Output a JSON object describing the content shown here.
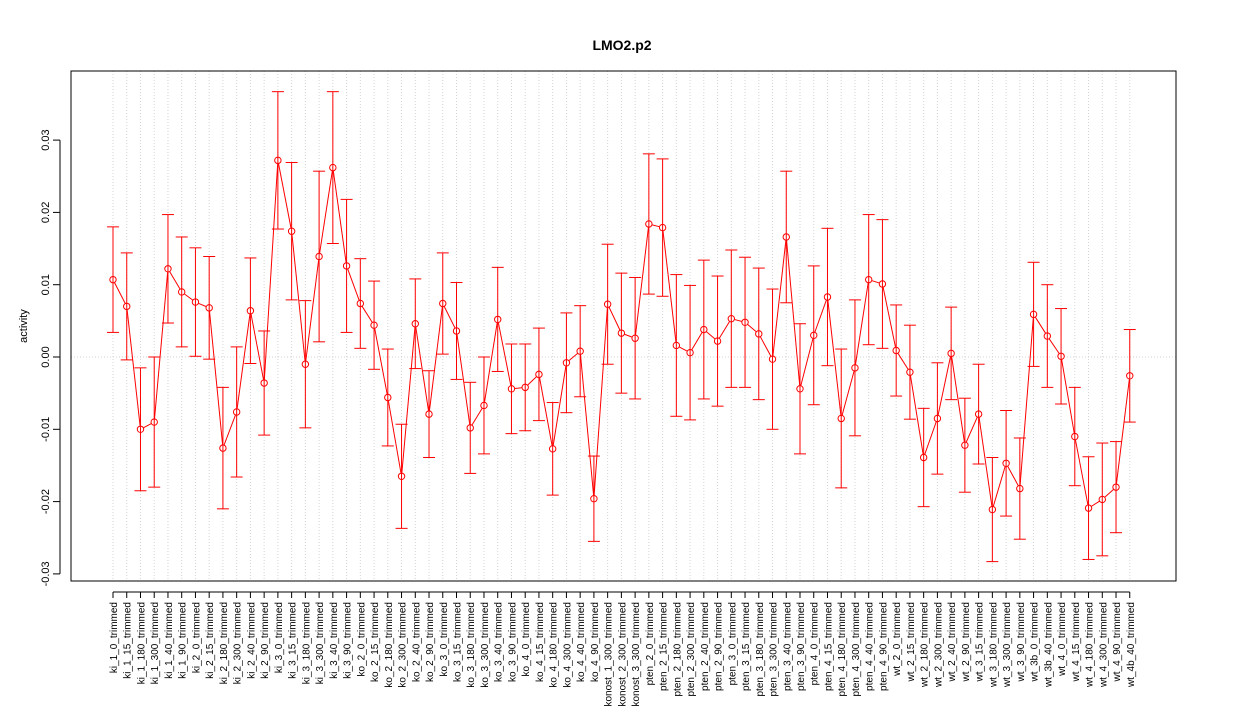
{
  "chart_data": {
    "type": "line",
    "title": "LMO2.p2",
    "xlabel": "",
    "ylabel": "activity",
    "ylim": [
      -0.031,
      0.04
    ],
    "yticks": [
      -0.03,
      -0.02,
      -0.01,
      0.0,
      0.01,
      0.02,
      0.03
    ],
    "ytick_labels": [
      "-0.03",
      "-0.02",
      "-0.01",
      "0.00",
      "0.01",
      "0.02",
      "0.03"
    ],
    "grid": true,
    "reference_line": 0.0,
    "color": "#ff0000",
    "error_bars": true,
    "categories": [
      "ki_1_0_trimmed",
      "ki_1_15_trimmed",
      "ki_1_180_trimmed",
      "ki_1_300_trimmed",
      "ki_1_40_trimmed",
      "ki_1_90_trimmed",
      "ki_2_0_trimmed",
      "ki_2_15_trimmed",
      "ki_2_180_trimmed",
      "ki_2_300_trimmed",
      "ki_2_40_trimmed",
      "ki_2_90_trimmed",
      "ki_3_0_trimmed",
      "ki_3_15_trimmed",
      "ki_3_180_trimmed",
      "ki_3_300_trimmed",
      "ki_3_40_trimmed",
      "ki_3_90_trimmed",
      "ko_2_0_trimmed",
      "ko_2_15_trimmed",
      "ko_2_180_trimmed",
      "ko_2_300_trimmed",
      "ko_2_40_trimmed",
      "ko_2_90_trimmed",
      "ko_3_0_trimmed",
      "ko_3_15_trimmed",
      "ko_3_180_trimmed",
      "ko_3_300_trimmed",
      "ko_3_40_trimmed",
      "ko_3_90_trimmed",
      "ko_4_0_trimmed",
      "ko_4_15_trimmed",
      "ko_4_180_trimmed",
      "ko_4_300_trimmed",
      "ko_4_40_trimmed",
      "ko_4_90_trimmed",
      "konost_1_300_trimmed",
      "konost_2_300_trimmed",
      "konost_3_300_trimmed",
      "pten_2_0_trimmed",
      "pten_2_15_trimmed",
      "pten_2_180_trimmed",
      "pten_2_300_trimmed",
      "pten_2_40_trimmed",
      "pten_2_90_trimmed",
      "pten_3_0_trimmed",
      "pten_3_15_trimmed",
      "pten_3_180_trimmed",
      "pten_3_300_trimmed",
      "pten_3_40_trimmed",
      "pten_3_90_trimmed",
      "pten_4_0_trimmed",
      "pten_4_15_trimmed",
      "pten_4_180_trimmed",
      "pten_4_300_trimmed",
      "pten_4_40_trimmed",
      "pten_4_90_trimmed",
      "wt_2_0_trimmed",
      "wt_2_15_trimmed",
      "wt_2_180_trimmed",
      "wt_2_300_trimmed",
      "wt_2_40_trimmed",
      "wt_2_90_trimmed",
      "wt_3_15_trimmed",
      "wt_3_180_trimmed",
      "wt_3_300_trimmed",
      "wt_3_90_trimmed",
      "wt_3b_0_trimmed",
      "wt_3b_40_trimmed",
      "wt_4_0_trimmed",
      "wt_4_15_trimmed",
      "wt_4_180_trimmed",
      "wt_4_300_trimmed",
      "wt_4_90_trimmed",
      "wt_4b_40_trimmed"
    ],
    "values": [
      0.0107,
      0.007,
      -0.01,
      -0.009,
      0.0122,
      0.009,
      0.0076,
      0.0068,
      -0.0126,
      -0.0076,
      0.0064,
      -0.0036,
      0.0272,
      0.0174,
      -0.001,
      0.0139,
      0.0262,
      0.0126,
      0.0074,
      0.0044,
      -0.0056,
      -0.0165,
      0.0046,
      -0.0079,
      0.0074,
      0.0036,
      -0.0098,
      -0.0067,
      0.0052,
      -0.0044,
      -0.0042,
      -0.0024,
      -0.0127,
      -0.0008,
      0.0008,
      -0.0196,
      0.0073,
      0.0033,
      0.0026,
      0.0184,
      0.0179,
      0.0016,
      0.0006,
      0.0038,
      0.0022,
      0.0053,
      0.0048,
      0.0032,
      -0.0003,
      0.0166,
      -0.0044,
      0.003,
      0.0083,
      -0.0085,
      -0.0015,
      0.0107,
      0.0101,
      0.0009,
      -0.0021,
      -0.0139,
      -0.0085,
      0.0005,
      -0.0122,
      -0.0079,
      -0.0211,
      -0.0147,
      -0.0182,
      0.0059,
      0.0029,
      0.0001,
      -0.011,
      -0.0209,
      -0.0197,
      -0.018,
      -0.0026
    ],
    "errors": [
      0.0073,
      0.0074,
      0.0085,
      0.009,
      0.0075,
      0.0076,
      0.0075,
      0.0071,
      0.0084,
      0.009,
      0.0073,
      0.0072,
      0.0095,
      0.0095,
      0.0088,
      0.0118,
      0.0105,
      0.0092,
      0.0062,
      0.0061,
      0.0067,
      0.0072,
      0.0062,
      0.006,
      0.007,
      0.0067,
      0.0063,
      0.0067,
      0.0072,
      0.0062,
      0.006,
      0.0064,
      0.0064,
      0.0069,
      0.0063,
      0.0059,
      0.0083,
      0.0083,
      0.0084,
      0.0097,
      0.0095,
      0.0098,
      0.0093,
      0.0096,
      0.009,
      0.0095,
      0.009,
      0.0091,
      0.0097,
      0.0091,
      0.009,
      0.0096,
      0.0095,
      0.0096,
      0.0094,
      0.009,
      0.0089,
      0.0063,
      0.0065,
      0.0068,
      0.0077,
      0.0064,
      0.0065,
      0.0069,
      0.0072,
      0.0073,
      0.007,
      0.0072,
      0.0071,
      0.0066,
      0.0068,
      0.0071,
      0.0078,
      0.0063,
      0.0064
    ]
  }
}
